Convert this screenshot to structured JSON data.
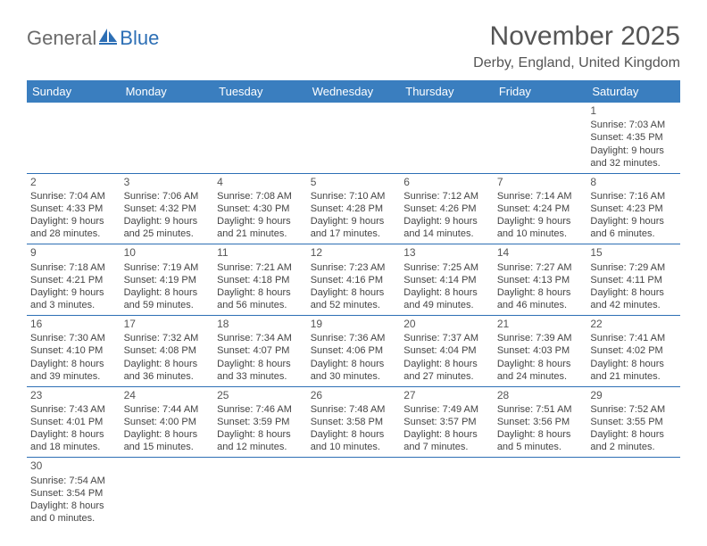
{
  "logo": {
    "part1": "General",
    "part2": "Blue"
  },
  "title": "November 2025",
  "location": "Derby, England, United Kingdom",
  "colors": {
    "header_bg": "#3a7ebf",
    "header_text": "#ffffff",
    "divider": "#2d6fb5",
    "text": "#444444",
    "title_text": "#555555"
  },
  "day_headers": [
    "Sunday",
    "Monday",
    "Tuesday",
    "Wednesday",
    "Thursday",
    "Friday",
    "Saturday"
  ],
  "weeks": [
    [
      null,
      null,
      null,
      null,
      null,
      null,
      {
        "n": "1",
        "sr": "Sunrise: 7:03 AM",
        "ss": "Sunset: 4:35 PM",
        "d1": "Daylight: 9 hours",
        "d2": "and 32 minutes."
      }
    ],
    [
      {
        "n": "2",
        "sr": "Sunrise: 7:04 AM",
        "ss": "Sunset: 4:33 PM",
        "d1": "Daylight: 9 hours",
        "d2": "and 28 minutes."
      },
      {
        "n": "3",
        "sr": "Sunrise: 7:06 AM",
        "ss": "Sunset: 4:32 PM",
        "d1": "Daylight: 9 hours",
        "d2": "and 25 minutes."
      },
      {
        "n": "4",
        "sr": "Sunrise: 7:08 AM",
        "ss": "Sunset: 4:30 PM",
        "d1": "Daylight: 9 hours",
        "d2": "and 21 minutes."
      },
      {
        "n": "5",
        "sr": "Sunrise: 7:10 AM",
        "ss": "Sunset: 4:28 PM",
        "d1": "Daylight: 9 hours",
        "d2": "and 17 minutes."
      },
      {
        "n": "6",
        "sr": "Sunrise: 7:12 AM",
        "ss": "Sunset: 4:26 PM",
        "d1": "Daylight: 9 hours",
        "d2": "and 14 minutes."
      },
      {
        "n": "7",
        "sr": "Sunrise: 7:14 AM",
        "ss": "Sunset: 4:24 PM",
        "d1": "Daylight: 9 hours",
        "d2": "and 10 minutes."
      },
      {
        "n": "8",
        "sr": "Sunrise: 7:16 AM",
        "ss": "Sunset: 4:23 PM",
        "d1": "Daylight: 9 hours",
        "d2": "and 6 minutes."
      }
    ],
    [
      {
        "n": "9",
        "sr": "Sunrise: 7:18 AM",
        "ss": "Sunset: 4:21 PM",
        "d1": "Daylight: 9 hours",
        "d2": "and 3 minutes."
      },
      {
        "n": "10",
        "sr": "Sunrise: 7:19 AM",
        "ss": "Sunset: 4:19 PM",
        "d1": "Daylight: 8 hours",
        "d2": "and 59 minutes."
      },
      {
        "n": "11",
        "sr": "Sunrise: 7:21 AM",
        "ss": "Sunset: 4:18 PM",
        "d1": "Daylight: 8 hours",
        "d2": "and 56 minutes."
      },
      {
        "n": "12",
        "sr": "Sunrise: 7:23 AM",
        "ss": "Sunset: 4:16 PM",
        "d1": "Daylight: 8 hours",
        "d2": "and 52 minutes."
      },
      {
        "n": "13",
        "sr": "Sunrise: 7:25 AM",
        "ss": "Sunset: 4:14 PM",
        "d1": "Daylight: 8 hours",
        "d2": "and 49 minutes."
      },
      {
        "n": "14",
        "sr": "Sunrise: 7:27 AM",
        "ss": "Sunset: 4:13 PM",
        "d1": "Daylight: 8 hours",
        "d2": "and 46 minutes."
      },
      {
        "n": "15",
        "sr": "Sunrise: 7:29 AM",
        "ss": "Sunset: 4:11 PM",
        "d1": "Daylight: 8 hours",
        "d2": "and 42 minutes."
      }
    ],
    [
      {
        "n": "16",
        "sr": "Sunrise: 7:30 AM",
        "ss": "Sunset: 4:10 PM",
        "d1": "Daylight: 8 hours",
        "d2": "and 39 minutes."
      },
      {
        "n": "17",
        "sr": "Sunrise: 7:32 AM",
        "ss": "Sunset: 4:08 PM",
        "d1": "Daylight: 8 hours",
        "d2": "and 36 minutes."
      },
      {
        "n": "18",
        "sr": "Sunrise: 7:34 AM",
        "ss": "Sunset: 4:07 PM",
        "d1": "Daylight: 8 hours",
        "d2": "and 33 minutes."
      },
      {
        "n": "19",
        "sr": "Sunrise: 7:36 AM",
        "ss": "Sunset: 4:06 PM",
        "d1": "Daylight: 8 hours",
        "d2": "and 30 minutes."
      },
      {
        "n": "20",
        "sr": "Sunrise: 7:37 AM",
        "ss": "Sunset: 4:04 PM",
        "d1": "Daylight: 8 hours",
        "d2": "and 27 minutes."
      },
      {
        "n": "21",
        "sr": "Sunrise: 7:39 AM",
        "ss": "Sunset: 4:03 PM",
        "d1": "Daylight: 8 hours",
        "d2": "and 24 minutes."
      },
      {
        "n": "22",
        "sr": "Sunrise: 7:41 AM",
        "ss": "Sunset: 4:02 PM",
        "d1": "Daylight: 8 hours",
        "d2": "and 21 minutes."
      }
    ],
    [
      {
        "n": "23",
        "sr": "Sunrise: 7:43 AM",
        "ss": "Sunset: 4:01 PM",
        "d1": "Daylight: 8 hours",
        "d2": "and 18 minutes."
      },
      {
        "n": "24",
        "sr": "Sunrise: 7:44 AM",
        "ss": "Sunset: 4:00 PM",
        "d1": "Daylight: 8 hours",
        "d2": "and 15 minutes."
      },
      {
        "n": "25",
        "sr": "Sunrise: 7:46 AM",
        "ss": "Sunset: 3:59 PM",
        "d1": "Daylight: 8 hours",
        "d2": "and 12 minutes."
      },
      {
        "n": "26",
        "sr": "Sunrise: 7:48 AM",
        "ss": "Sunset: 3:58 PM",
        "d1": "Daylight: 8 hours",
        "d2": "and 10 minutes."
      },
      {
        "n": "27",
        "sr": "Sunrise: 7:49 AM",
        "ss": "Sunset: 3:57 PM",
        "d1": "Daylight: 8 hours",
        "d2": "and 7 minutes."
      },
      {
        "n": "28",
        "sr": "Sunrise: 7:51 AM",
        "ss": "Sunset: 3:56 PM",
        "d1": "Daylight: 8 hours",
        "d2": "and 5 minutes."
      },
      {
        "n": "29",
        "sr": "Sunrise: 7:52 AM",
        "ss": "Sunset: 3:55 PM",
        "d1": "Daylight: 8 hours",
        "d2": "and 2 minutes."
      }
    ],
    [
      {
        "n": "30",
        "sr": "Sunrise: 7:54 AM",
        "ss": "Sunset: 3:54 PM",
        "d1": "Daylight: 8 hours",
        "d2": "and 0 minutes."
      },
      null,
      null,
      null,
      null,
      null,
      null
    ]
  ]
}
